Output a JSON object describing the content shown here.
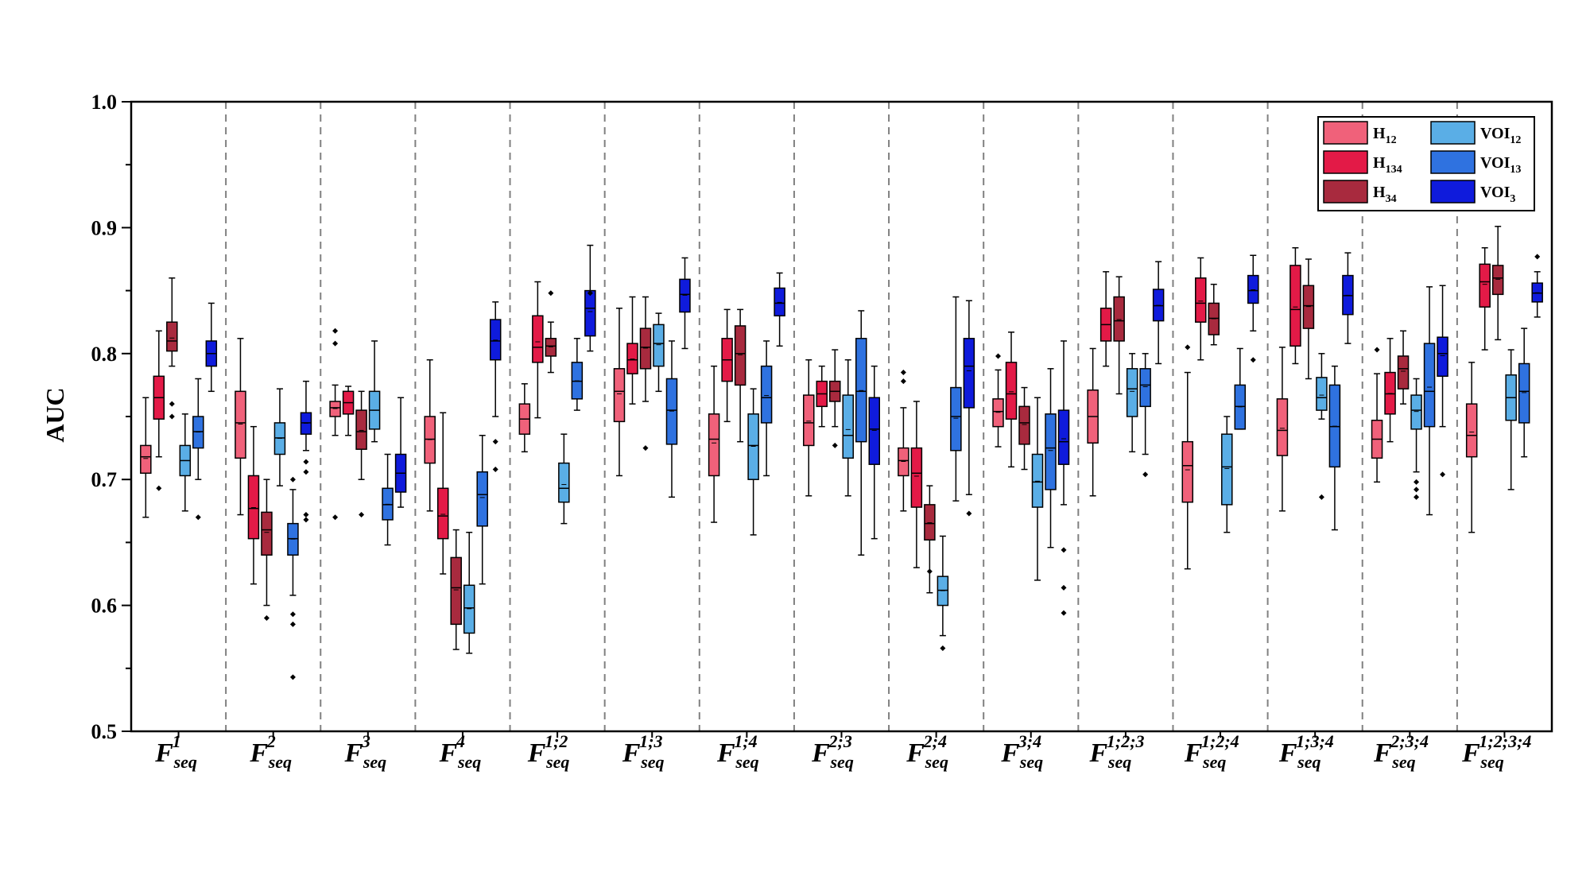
{
  "chart_data": {
    "type": "box",
    "ylabel": "AUC",
    "ylim": [
      0.5,
      1.0
    ],
    "yticks": [
      "0.5",
      "0.6",
      "0.7",
      "0.8",
      "0.9",
      "1.0"
    ],
    "grid": false,
    "legend_position": "top-right",
    "categories": [
      {
        "base": "F",
        "sup": "1",
        "sub": "seq"
      },
      {
        "base": "F",
        "sup": "2",
        "sub": "seq"
      },
      {
        "base": "F",
        "sup": "3",
        "sub": "seq"
      },
      {
        "base": "F",
        "sup": "4",
        "sub": "seq"
      },
      {
        "base": "F",
        "sup": "1;2",
        "sub": "seq"
      },
      {
        "base": "F",
        "sup": "1;3",
        "sub": "seq"
      },
      {
        "base": "F",
        "sup": "1;4",
        "sub": "seq"
      },
      {
        "base": "F",
        "sup": "2;3",
        "sub": "seq"
      },
      {
        "base": "F",
        "sup": "2;4",
        "sub": "seq"
      },
      {
        "base": "F",
        "sup": "3;4",
        "sub": "seq"
      },
      {
        "base": "F",
        "sup": "1;2;3",
        "sub": "seq"
      },
      {
        "base": "F",
        "sup": "1;2;4",
        "sub": "seq"
      },
      {
        "base": "F",
        "sup": "1;3;4",
        "sub": "seq"
      },
      {
        "base": "F",
        "sup": "2;3;4",
        "sub": "seq"
      },
      {
        "base": "F",
        "sup": "1;2;3;4",
        "sub": "seq"
      }
    ],
    "series": [
      {
        "name": "H12",
        "label": "H",
        "label_sub": "12",
        "color": "#f0617a",
        "boxes": [
          [
            0.67,
            0.705,
            0.718,
            0.727,
            0.765,
            []
          ],
          [
            0.672,
            0.717,
            0.745,
            0.77,
            0.812,
            []
          ],
          [
            0.735,
            0.75,
            0.757,
            0.762,
            0.775,
            [
              0.818,
              0.808,
              0.67
            ]
          ],
          [
            0.675,
            0.713,
            0.732,
            0.75,
            0.795,
            []
          ],
          [
            0.722,
            0.736,
            0.748,
            0.76,
            0.776,
            []
          ],
          [
            0.703,
            0.746,
            0.77,
            0.788,
            0.836,
            []
          ],
          [
            0.666,
            0.703,
            0.732,
            0.752,
            0.79,
            []
          ],
          [
            0.687,
            0.727,
            0.745,
            0.767,
            0.795,
            []
          ],
          [
            0.675,
            0.703,
            0.715,
            0.725,
            0.757,
            [
              0.785,
              0.778
            ]
          ],
          [
            0.726,
            0.742,
            0.754,
            0.764,
            0.787,
            [
              0.798
            ]
          ],
          [
            0.687,
            0.729,
            0.75,
            0.771,
            0.804,
            []
          ],
          [
            0.629,
            0.682,
            0.711,
            0.73,
            0.785,
            [
              0.805
            ]
          ],
          [
            0.675,
            0.719,
            0.739,
            0.764,
            0.805,
            []
          ],
          [
            0.698,
            0.717,
            0.732,
            0.747,
            0.784,
            [
              0.803
            ]
          ],
          [
            0.658,
            0.718,
            0.735,
            0.76,
            0.793,
            []
          ]
        ]
      },
      {
        "name": "H134",
        "label": "H",
        "label_sub": "134",
        "color": "#e31a47",
        "boxes": [
          [
            0.718,
            0.748,
            0.765,
            0.782,
            0.818,
            [
              0.693
            ]
          ],
          [
            0.617,
            0.653,
            0.677,
            0.703,
            0.742,
            []
          ],
          [
            0.735,
            0.752,
            0.761,
            0.77,
            0.774,
            []
          ],
          [
            0.625,
            0.653,
            0.671,
            0.693,
            0.753,
            []
          ],
          [
            0.749,
            0.793,
            0.805,
            0.83,
            0.857,
            []
          ],
          [
            0.76,
            0.784,
            0.795,
            0.808,
            0.845,
            []
          ],
          [
            0.746,
            0.778,
            0.795,
            0.812,
            0.835,
            []
          ],
          [
            0.742,
            0.758,
            0.768,
            0.778,
            0.79,
            []
          ],
          [
            0.63,
            0.678,
            0.705,
            0.725,
            0.762,
            []
          ],
          [
            0.71,
            0.748,
            0.768,
            0.793,
            0.817,
            []
          ],
          [
            0.79,
            0.81,
            0.823,
            0.836,
            0.865,
            []
          ],
          [
            0.795,
            0.825,
            0.84,
            0.86,
            0.876,
            []
          ],
          [
            0.792,
            0.806,
            0.835,
            0.87,
            0.884,
            []
          ],
          [
            0.73,
            0.752,
            0.768,
            0.785,
            0.812,
            []
          ],
          [
            0.803,
            0.837,
            0.857,
            0.871,
            0.884,
            []
          ]
        ]
      },
      {
        "name": "H34",
        "label": "H",
        "label_sub": "34",
        "color": "#a82a3e",
        "boxes": [
          [
            0.79,
            0.802,
            0.81,
            0.825,
            0.86,
            [
              0.76,
              0.75
            ]
          ],
          [
            0.6,
            0.64,
            0.66,
            0.674,
            0.7,
            [
              0.59
            ]
          ],
          [
            0.7,
            0.724,
            0.738,
            0.755,
            0.77,
            [
              0.672
            ]
          ],
          [
            0.565,
            0.585,
            0.614,
            0.638,
            0.66,
            []
          ],
          [
            0.785,
            0.798,
            0.806,
            0.812,
            0.825,
            [
              0.848
            ]
          ],
          [
            0.762,
            0.788,
            0.805,
            0.82,
            0.845,
            [
              0.725
            ]
          ],
          [
            0.73,
            0.775,
            0.8,
            0.822,
            0.835,
            []
          ],
          [
            0.742,
            0.762,
            0.77,
            0.778,
            0.803,
            [
              0.727
            ]
          ],
          [
            0.61,
            0.652,
            0.665,
            0.68,
            0.695,
            [
              0.627
            ]
          ],
          [
            0.708,
            0.728,
            0.745,
            0.758,
            0.773,
            []
          ],
          [
            0.768,
            0.81,
            0.826,
            0.845,
            0.861,
            []
          ],
          [
            0.807,
            0.815,
            0.828,
            0.84,
            0.855,
            []
          ],
          [
            0.78,
            0.82,
            0.838,
            0.854,
            0.875,
            []
          ],
          [
            0.76,
            0.772,
            0.788,
            0.798,
            0.818,
            []
          ],
          [
            0.811,
            0.847,
            0.86,
            0.87,
            0.901,
            []
          ]
        ]
      },
      {
        "name": "VOI12",
        "label": "VOI",
        "label_sub": "12",
        "color": "#5aaee6",
        "boxes": [
          [
            0.675,
            0.703,
            0.715,
            0.727,
            0.752,
            []
          ],
          [
            0.695,
            0.72,
            0.733,
            0.745,
            0.772,
            []
          ],
          [
            0.73,
            0.74,
            0.755,
            0.77,
            0.81,
            []
          ],
          [
            0.562,
            0.578,
            0.598,
            0.616,
            0.658,
            []
          ],
          [
            0.665,
            0.682,
            0.693,
            0.713,
            0.736,
            []
          ],
          [
            0.77,
            0.79,
            0.808,
            0.823,
            0.832,
            []
          ],
          [
            0.656,
            0.7,
            0.727,
            0.752,
            0.772,
            []
          ],
          [
            0.687,
            0.717,
            0.735,
            0.767,
            0.795,
            []
          ],
          [
            0.576,
            0.6,
            0.612,
            0.623,
            0.655,
            [
              0.566
            ]
          ],
          [
            0.62,
            0.678,
            0.698,
            0.72,
            0.765,
            []
          ],
          [
            0.722,
            0.75,
            0.772,
            0.788,
            0.8,
            []
          ],
          [
            0.658,
            0.68,
            0.71,
            0.736,
            0.75,
            []
          ],
          [
            0.748,
            0.755,
            0.765,
            0.781,
            0.8,
            [
              0.686
            ]
          ],
          [
            0.706,
            0.74,
            0.755,
            0.767,
            0.78,
            [
              0.698,
              0.692,
              0.686
            ]
          ],
          [
            0.692,
            0.747,
            0.765,
            0.783,
            0.803,
            []
          ]
        ]
      },
      {
        "name": "VOI13",
        "label": "VOI",
        "label_sub": "13",
        "color": "#2f72e0",
        "boxes": [
          [
            0.7,
            0.725,
            0.738,
            0.75,
            0.78,
            [
              0.67
            ]
          ],
          [
            0.608,
            0.64,
            0.653,
            0.665,
            0.692,
            [
              0.7,
              0.593,
              0.585,
              0.543
            ]
          ],
          [
            0.648,
            0.668,
            0.68,
            0.693,
            0.72,
            []
          ],
          [
            0.617,
            0.663,
            0.688,
            0.706,
            0.735,
            []
          ],
          [
            0.755,
            0.764,
            0.778,
            0.793,
            0.812,
            []
          ],
          [
            0.686,
            0.728,
            0.755,
            0.78,
            0.81,
            []
          ],
          [
            0.703,
            0.745,
            0.765,
            0.79,
            0.81,
            []
          ],
          [
            0.64,
            0.73,
            0.77,
            0.812,
            0.834,
            []
          ],
          [
            0.683,
            0.723,
            0.75,
            0.773,
            0.845,
            []
          ],
          [
            0.646,
            0.692,
            0.725,
            0.752,
            0.788,
            []
          ],
          [
            0.72,
            0.758,
            0.775,
            0.788,
            0.8,
            [
              0.704
            ]
          ],
          [
            0.74,
            0.74,
            0.758,
            0.775,
            0.804,
            []
          ],
          [
            0.66,
            0.71,
            0.742,
            0.775,
            0.79,
            []
          ],
          [
            0.672,
            0.742,
            0.77,
            0.808,
            0.853,
            []
          ],
          [
            0.718,
            0.745,
            0.77,
            0.792,
            0.82,
            []
          ]
        ]
      },
      {
        "name": "VOI3",
        "label": "VOI",
        "label_sub": "3",
        "color": "#0f1bdc",
        "boxes": [
          [
            0.77,
            0.79,
            0.8,
            0.81,
            0.84,
            []
          ],
          [
            0.723,
            0.736,
            0.745,
            0.753,
            0.778,
            [
              0.714,
              0.706,
              0.672,
              0.668
            ]
          ],
          [
            0.678,
            0.69,
            0.705,
            0.72,
            0.765,
            []
          ],
          [
            0.75,
            0.795,
            0.81,
            0.827,
            0.841,
            [
              0.73,
              0.708
            ]
          ],
          [
            0.802,
            0.814,
            0.836,
            0.85,
            0.886,
            [
              0.848
            ]
          ],
          [
            0.804,
            0.833,
            0.847,
            0.859,
            0.876,
            []
          ],
          [
            0.806,
            0.83,
            0.84,
            0.852,
            0.864,
            []
          ],
          [
            0.653,
            0.712,
            0.74,
            0.765,
            0.79,
            []
          ],
          [
            0.688,
            0.757,
            0.79,
            0.812,
            0.842,
            [
              0.673
            ]
          ],
          [
            0.68,
            0.712,
            0.73,
            0.755,
            0.81,
            [
              0.644,
              0.614,
              0.594
            ]
          ],
          [
            0.792,
            0.826,
            0.838,
            0.851,
            0.873,
            []
          ],
          [
            0.818,
            0.84,
            0.85,
            0.862,
            0.878,
            [
              0.795
            ]
          ],
          [
            0.808,
            0.831,
            0.846,
            0.862,
            0.88,
            []
          ],
          [
            0.742,
            0.782,
            0.8,
            0.813,
            0.854,
            [
              0.704
            ]
          ],
          [
            0.829,
            0.841,
            0.848,
            0.856,
            0.865,
            [
              0.877
            ]
          ]
        ]
      }
    ]
  }
}
